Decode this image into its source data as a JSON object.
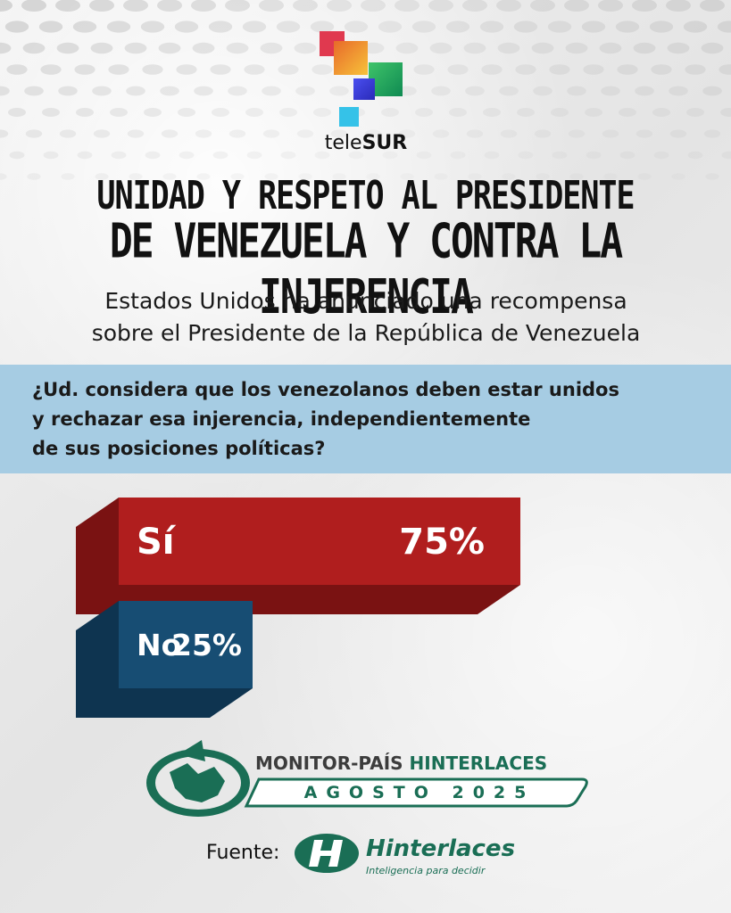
{
  "brand": {
    "name_light": "tele",
    "name_bold": "SUR"
  },
  "headline": {
    "line1": "UNIDAD Y RESPETO AL PRESIDENTE",
    "line2": "DE VENEZUELA Y CONTRA LA INJERENCIA"
  },
  "subtitle": {
    "line1": "Estados Unidos ha anunciado una recompensa",
    "line2": "sobre el Presidente de la República de Venezuela"
  },
  "question": {
    "line1": "¿Ud. considera que los venezolanos deben estar unidos",
    "line2": "y rechazar esa injerencia, independientemente",
    "line3": "de sus posiciones políticas?"
  },
  "chart_data": {
    "type": "bar",
    "orientation": "horizontal",
    "categories": [
      "Sí",
      "No"
    ],
    "values": [
      75,
      25
    ],
    "value_labels": [
      "75%",
      "25%"
    ],
    "unit": "%",
    "xlim": [
      0,
      100
    ]
  },
  "source_box": {
    "title_part1": "MONITOR-PAÍS",
    "title_part2": "HINTERLACES",
    "period": "AGOSTO 2025"
  },
  "footer": {
    "label": "Fuente:",
    "org_name": "Hinterlaces",
    "tagline": "Inteligencia para decidir"
  },
  "colors": {
    "si_bar": "#b01e1e",
    "no_bar": "#174d73",
    "question_band": "#a6cce3",
    "hinterlaces_green": "#1a6e55"
  },
  "icons": [
    "telesur-squares-logo",
    "venezuela-map-emblem",
    "hinterlaces-h-logo"
  ]
}
